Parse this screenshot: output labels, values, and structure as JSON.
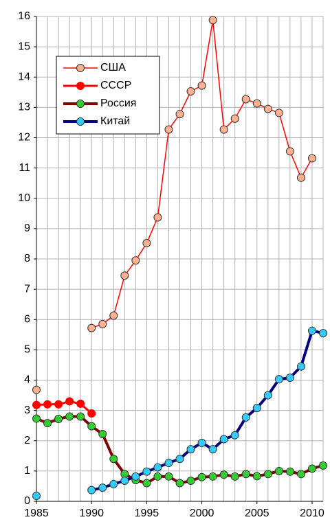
{
  "chart_data": {
    "type": "line",
    "x": [
      1985,
      1986,
      1987,
      1988,
      1989,
      1990,
      1991,
      1992,
      1993,
      1994,
      1995,
      1996,
      1997,
      1998,
      1999,
      2000,
      2001,
      2002,
      2003,
      2004,
      2005,
      2006,
      2007,
      2008,
      2009,
      2010,
      2011
    ],
    "series": [
      {
        "name": "США",
        "color": "#ff0000",
        "marker_color": "#ffb090",
        "width": 1.5,
        "values": [
          3.68,
          null,
          null,
          null,
          null,
          5.72,
          5.85,
          6.13,
          7.45,
          7.95,
          8.52,
          9.37,
          12.27,
          12.78,
          13.53,
          13.72,
          15.88,
          12.27,
          12.63,
          13.27,
          13.13,
          12.95,
          12.82,
          11.55,
          10.68,
          11.32,
          null
        ]
      },
      {
        "name": "СССР",
        "color": "#ff0000",
        "marker_color": "#ff0000",
        "width": 3,
        "values": [
          3.18,
          3.2,
          3.2,
          3.3,
          3.22,
          2.9,
          null,
          null,
          null,
          null,
          null,
          null,
          null,
          null,
          null,
          null,
          null,
          null,
          null,
          null,
          null,
          null,
          null,
          null,
          null,
          null,
          null
        ]
      },
      {
        "name": "Россия",
        "color": "#800000",
        "marker_color": "#33cc33",
        "width": 4,
        "values": [
          2.73,
          2.58,
          2.72,
          2.8,
          2.8,
          2.48,
          2.22,
          1.4,
          0.9,
          0.7,
          0.6,
          0.82,
          0.82,
          0.6,
          0.68,
          0.8,
          0.82,
          0.88,
          0.82,
          0.9,
          0.83,
          0.9,
          1.0,
          0.98,
          0.9,
          1.08,
          1.18
        ]
      },
      {
        "name": "Китай",
        "color": "#000080",
        "marker_color": "#33ccff",
        "width": 4,
        "values": [
          0.18,
          null,
          null,
          null,
          null,
          0.37,
          0.45,
          0.57,
          0.68,
          0.82,
          0.98,
          1.12,
          1.27,
          1.4,
          1.72,
          1.93,
          1.72,
          2.05,
          2.18,
          2.77,
          3.08,
          3.5,
          4.03,
          4.08,
          4.45,
          5.63,
          5.55
        ]
      }
    ],
    "xlim": [
      1985,
      2011
    ],
    "xticks": [
      1985,
      1990,
      1995,
      2000,
      2005,
      2010
    ],
    "ylim": [
      0,
      16
    ],
    "yticks": [
      0,
      1,
      2,
      3,
      4,
      5,
      6,
      7,
      8,
      9,
      10,
      11,
      12,
      13,
      14,
      15,
      16
    ],
    "grid": true
  }
}
